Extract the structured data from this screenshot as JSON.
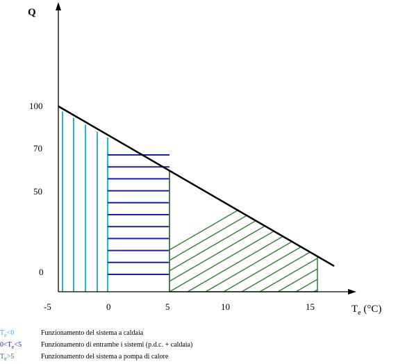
{
  "axes": {
    "y_label": "Q",
    "x_label_main": "T",
    "x_label_sub": "e",
    "x_label_unit": " (°C)",
    "y_ticks": [
      "100",
      "70",
      "50",
      "0"
    ],
    "x_ticks": [
      "-5",
      "0",
      "5",
      "10",
      "15"
    ]
  },
  "colors": {
    "axis": "#000000",
    "line": "#000000",
    "boiler": "#22b5d8",
    "both": "#1a1fb0",
    "heatpump": "#2e7d32"
  },
  "legend": [
    {
      "key_prefix": "T",
      "key_sub": "e",
      "key_suffix": "<0",
      "description": "Funzionamento del sistema a caldaia",
      "color": "#22b5d8"
    },
    {
      "key_prefix": "0<T",
      "key_sub": "e",
      "key_suffix": "<5",
      "description": "Funzionamento di entrambe i sistemi (p.d.c. + caldaia)",
      "color": "#1a1fb0"
    },
    {
      "key_prefix": "T",
      "key_sub": "e",
      "key_suffix": ">5",
      "description": "Funzionamento del sistema a pompa di calore",
      "color": "#2e7d32"
    }
  ]
}
